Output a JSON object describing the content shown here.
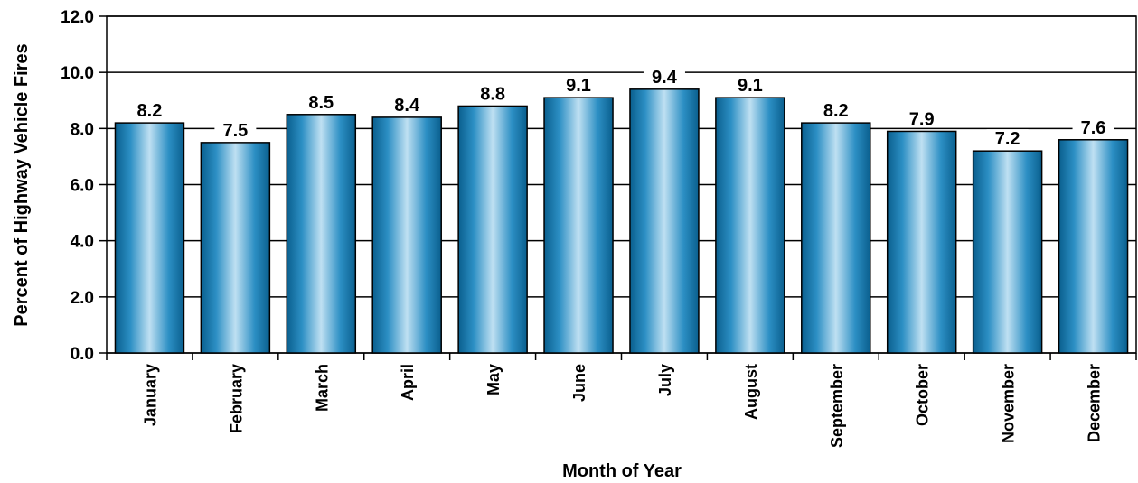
{
  "chart_data": {
    "type": "bar",
    "xlabel": "Month of Year",
    "ylabel": "Percent of Highway Vehicle Fires",
    "categories": [
      "January",
      "February",
      "March",
      "April",
      "May",
      "June",
      "July",
      "August",
      "September",
      "October",
      "November",
      "December"
    ],
    "values": [
      8.2,
      7.5,
      8.5,
      8.4,
      8.8,
      9.1,
      9.4,
      9.1,
      8.2,
      7.9,
      7.2,
      7.6
    ],
    "ylim": [
      0,
      12
    ],
    "yticks": [
      "0.0",
      "2.0",
      "4.0",
      "6.0",
      "8.0",
      "10.0",
      "12.0"
    ],
    "grid": true,
    "legend": "none",
    "colors": {
      "bar_dark": "#0a5f8e",
      "bar_light": "#bfe0f2",
      "bar_mid": "#2c8fc4"
    }
  }
}
